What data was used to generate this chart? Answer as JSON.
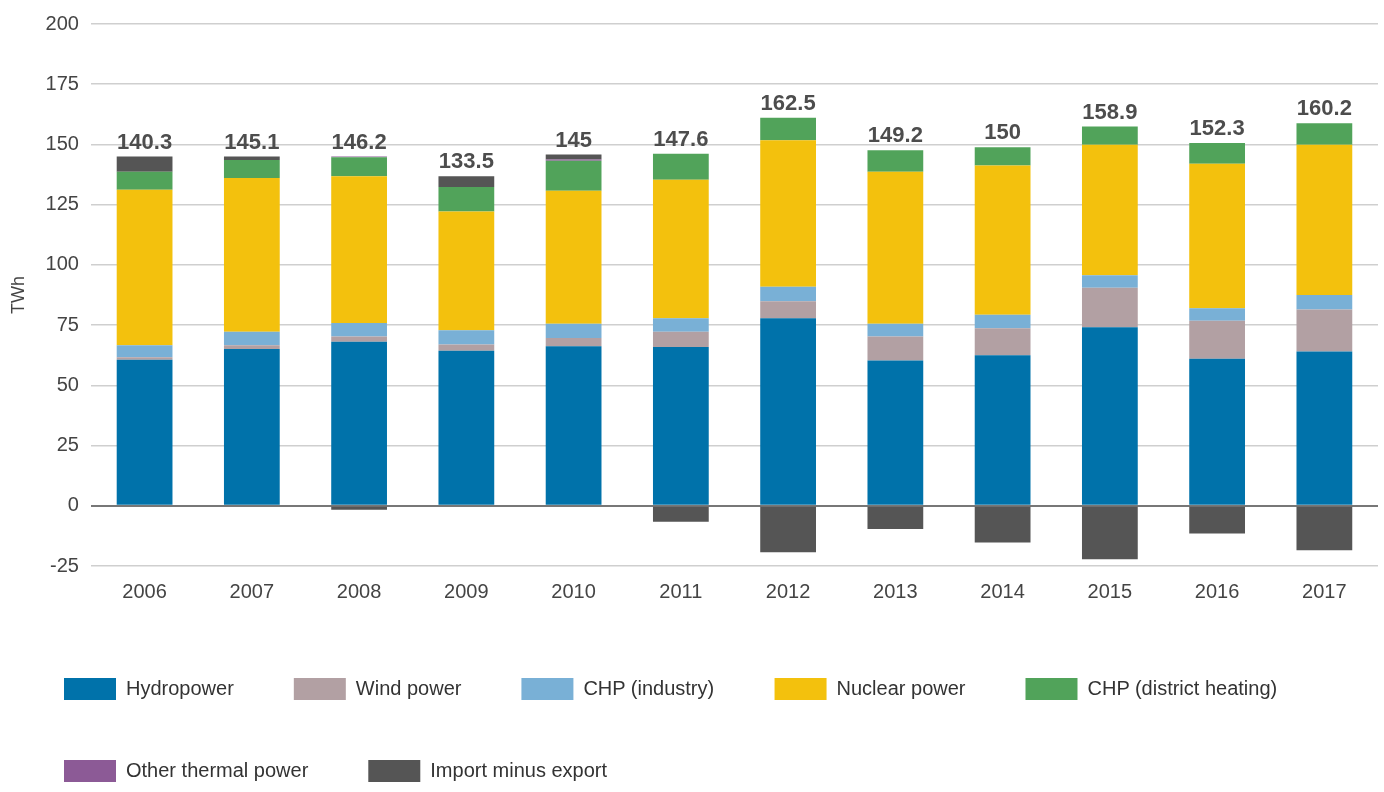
{
  "chart_data": {
    "type": "bar",
    "stacked": true,
    "ylabel": "TWh",
    "categories": [
      "2006",
      "2007",
      "2008",
      "2009",
      "2010",
      "2011",
      "2012",
      "2013",
      "2014",
      "2015",
      "2016",
      "2017"
    ],
    "series": [
      {
        "name": "Hydropower",
        "color": "#0072aa",
        "values": [
          60.6,
          65.1,
          68.1,
          64.4,
          66.2,
          65.9,
          77.8,
          60.3,
          62.5,
          74.1,
          61.0,
          64.0
        ]
      },
      {
        "name": "Wind power",
        "color": "#b2a0a3",
        "values": [
          1.1,
          1.5,
          2.2,
          2.6,
          3.4,
          6.3,
          7.1,
          10.0,
          11.2,
          16.4,
          15.8,
          17.5
        ]
      },
      {
        "name": "CHP (industry)",
        "color": "#79b0d6",
        "values": [
          4.9,
          5.6,
          5.6,
          5.9,
          6.0,
          5.6,
          6.0,
          5.3,
          5.6,
          5.2,
          5.2,
          6.0
        ]
      },
      {
        "name": "Nuclear power",
        "color": "#f3c10d",
        "values": [
          64.6,
          63.9,
          60.9,
          49.3,
          55.2,
          57.5,
          60.8,
          63.1,
          62.0,
          54.2,
          60.0,
          62.4
        ]
      },
      {
        "name": "CHP (district heating)",
        "color": "#51a35a",
        "values": [
          7.5,
          7.4,
          7.9,
          10.1,
          12.4,
          10.8,
          9.4,
          8.9,
          7.5,
          7.5,
          8.6,
          8.9
        ]
      },
      {
        "name": "Other thermal power",
        "color": "#8c5a96",
        "values": [
          null,
          null,
          0.3,
          null,
          0.5,
          null,
          null,
          null,
          null,
          null,
          null,
          null
        ]
      },
      {
        "name": "Import minus export",
        "color": "#555555",
        "values": [
          6.3,
          1.5,
          -1.7,
          4.5,
          2.1,
          -6.6,
          -19.3,
          -9.6,
          -15.2,
          -22.2,
          -11.5,
          -18.5
        ]
      }
    ],
    "annotations": [
      {
        "text": "140.3",
        "x": "2006",
        "y": 145.0
      },
      {
        "text": "145.1",
        "x": "2007",
        "y": 145.0
      },
      {
        "text": "146.2",
        "x": "2008",
        "y": 145.0
      },
      {
        "text": "133.5",
        "x": "2009",
        "y": 136.8
      },
      {
        "text": "145",
        "x": "2010",
        "y": 145.8
      },
      {
        "text": "147.6",
        "x": "2011",
        "y": 146.1
      },
      {
        "text": "162.5",
        "x": "2012",
        "y": 161.1
      },
      {
        "text": "149.2",
        "x": "2013",
        "y": 147.6
      },
      {
        "text": "150",
        "x": "2014",
        "y": 148.8
      },
      {
        "text": "158.9",
        "x": "2015",
        "y": 157.4
      },
      {
        "text": "152.3",
        "x": "2016",
        "y": 150.6
      },
      {
        "text": "160.2",
        "x": "2017",
        "y": 158.8
      }
    ],
    "ylim": [
      -25,
      200
    ],
    "yticks": [
      -25,
      0,
      25,
      50,
      75,
      100,
      125,
      150,
      175,
      200
    ],
    "grid": "y",
    "legend": "bottom"
  }
}
